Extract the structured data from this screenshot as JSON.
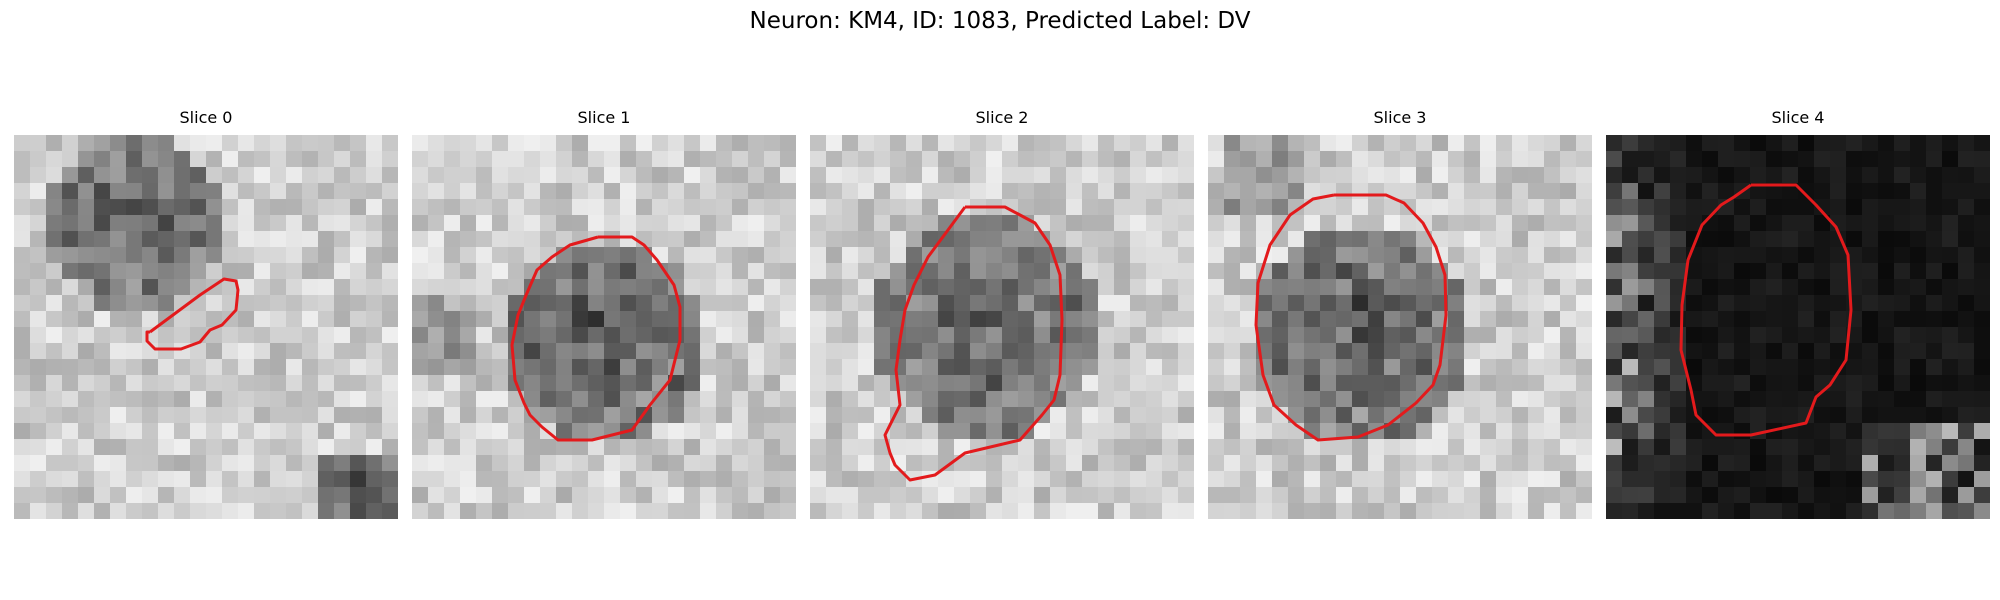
{
  "figure": {
    "title": "Neuron: KM4, ID: 1083, Predicted Label: DV"
  },
  "contour_color": "#e31a1c",
  "panels": [
    {
      "title": "Slice 0",
      "brightness": "bright",
      "blob": "top-left dark cell"
    },
    {
      "title": "Slice 1",
      "brightness": "bright",
      "blob": "central dark cell"
    },
    {
      "title": "Slice 2",
      "brightness": "bright",
      "blob": "central dark cell"
    },
    {
      "title": "Slice 3",
      "brightness": "bright",
      "blob": "central dark cell"
    },
    {
      "title": "Slice 4",
      "brightness": "dark",
      "blob": "dark field with bright edges"
    }
  ]
}
